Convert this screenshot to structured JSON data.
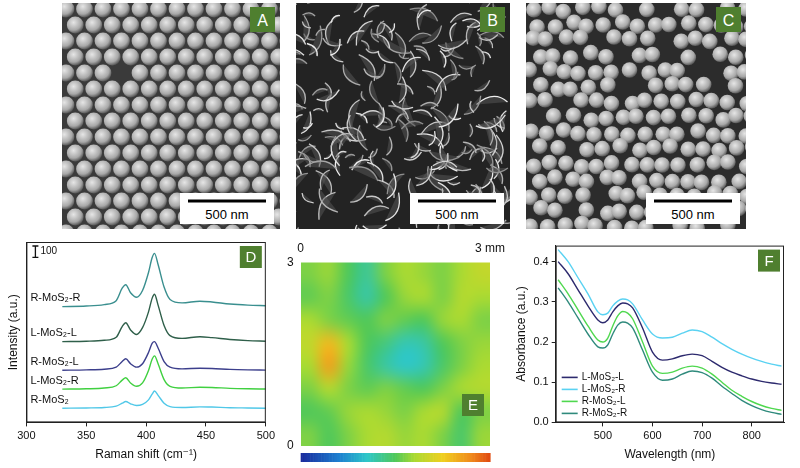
{
  "panels": [
    {
      "letter": "A",
      "scale_bar": "500 nm"
    },
    {
      "letter": "B",
      "scale_bar": "500 nm"
    },
    {
      "letter": "C",
      "scale_bar": "500 nm"
    }
  ],
  "chart_data": [
    {
      "letter": "D",
      "type": "line",
      "xlabel": "Raman shift (cm⁻¹)",
      "ylabel": "Intensity (a.u.)",
      "x": [
        330,
        350,
        365,
        375,
        380,
        383,
        387,
        392,
        397,
        402,
        405,
        407,
        410,
        415,
        420,
        430,
        445,
        455,
        470,
        485,
        500
      ],
      "series": [
        {
          "name": "R-MoS₂-R",
          "color": "#3a8f8f",
          "values": [
            1027,
            1032,
            1045,
            1080,
            1190,
            1221,
            1150,
            1110,
            1170,
            1330,
            1460,
            1499,
            1400,
            1200,
            1090,
            1060,
            1075,
            1068,
            1050,
            1040,
            1035
          ]
        },
        {
          "name": "L-MoS₂-L",
          "color": "#2f5f4a",
          "values": [
            716,
            720,
            728,
            755,
            850,
            884,
            820,
            780,
            840,
            980,
            1100,
            1137,
            1040,
            860,
            770,
            745,
            760,
            752,
            735,
            725,
            720
          ]
        },
        {
          "name": "R-MoS₂-L",
          "color": "#3c3f8c",
          "values": [
            463,
            466,
            472,
            490,
            540,
            564,
            520,
            490,
            520,
            620,
            700,
            716,
            660,
            540,
            490,
            475,
            480,
            478,
            470,
            466,
            464
          ]
        },
        {
          "name": "L-MoS₂-R",
          "color": "#40d040",
          "values": [
            295,
            298,
            305,
            325,
            375,
            396,
            350,
            320,
            350,
            460,
            560,
            590,
            520,
            380,
            320,
            305,
            312,
            310,
            302,
            298,
            296
          ]
        },
        {
          "name": "R-MoS₂",
          "color": "#50c8e8",
          "values": [
            126,
            128,
            132,
            145,
            170,
            185,
            165,
            150,
            160,
            200,
            250,
            278,
            240,
            170,
            140,
            132,
            138,
            136,
            130,
            128,
            126
          ]
        }
      ],
      "xlim": [
        300,
        500
      ],
      "xticks": [
        300,
        350,
        400,
        450,
        500
      ],
      "ylim": [
        0,
        1600
      ],
      "scale_bar": 100,
      "tick_labels": "x",
      "grid": false
    },
    {
      "letter": "E",
      "type": "heatmap",
      "cells": [
        [
          0.55,
          0.58,
          0.5,
          0.42,
          0.55,
          0.6,
          0.58,
          0.55,
          0.6,
          0.65
        ],
        [
          0.52,
          0.55,
          0.48,
          0.4,
          0.5,
          0.58,
          0.6,
          0.55,
          0.62,
          0.6
        ],
        [
          0.6,
          0.55,
          0.52,
          0.5,
          0.55,
          0.52,
          0.5,
          0.58,
          0.6,
          0.55
        ],
        [
          0.65,
          0.8,
          0.6,
          0.5,
          0.45,
          0.38,
          0.4,
          0.5,
          0.55,
          0.58
        ],
        [
          0.6,
          0.85,
          0.58,
          0.48,
          0.4,
          0.35,
          0.38,
          0.48,
          0.55,
          0.6
        ],
        [
          0.55,
          0.62,
          0.55,
          0.52,
          0.55,
          0.52,
          0.5,
          0.55,
          0.6,
          0.62
        ],
        [
          0.5,
          0.52,
          0.58,
          0.6,
          0.58,
          0.55,
          0.6,
          0.62,
          0.5,
          0.55
        ],
        [
          0.55,
          0.5,
          0.55,
          0.6,
          0.62,
          0.58,
          0.6,
          0.55,
          0.48,
          0.58
        ]
      ],
      "xlim": [
        0,
        3
      ],
      "xticks": [
        0,
        {
          "value": 3,
          "label": "3 mm"
        }
      ],
      "ylim": [
        0,
        3
      ],
      "yticks": [
        0,
        3
      ],
      "colorbar_range": [
        0,
        1
      ]
    },
    {
      "letter": "F",
      "type": "line",
      "xlabel": "Wavelength (nm)",
      "ylabel": "Absorbance (a.u.)",
      "x": [
        410,
        430,
        450,
        470,
        490,
        500,
        510,
        520,
        530,
        540,
        550,
        560,
        580,
        600,
        620,
        640,
        660,
        680,
        700,
        720,
        740,
        760,
        780,
        800,
        820,
        840,
        860
      ],
      "series": [
        {
          "name": "L-MoS₂-L",
          "color": "#2d2a6e",
          "values": [
            0.4,
            0.37,
            0.33,
            0.29,
            0.255,
            0.248,
            0.255,
            0.275,
            0.29,
            0.297,
            0.295,
            0.285,
            0.235,
            0.175,
            0.155,
            0.158,
            0.166,
            0.17,
            0.166,
            0.152,
            0.137,
            0.125,
            0.116,
            0.108,
            0.102,
            0.098,
            0.095
          ]
        },
        {
          "name": "L-MoS₂-R",
          "color": "#5ad2f2",
          "values": [
            0.43,
            0.4,
            0.36,
            0.32,
            0.275,
            0.268,
            0.272,
            0.29,
            0.302,
            0.307,
            0.305,
            0.295,
            0.255,
            0.22,
            0.21,
            0.212,
            0.222,
            0.23,
            0.226,
            0.212,
            0.196,
            0.182,
            0.17,
            0.16,
            0.152,
            0.145,
            0.14
          ]
        },
        {
          "name": "R-MoS₂-L",
          "color": "#4fd84f",
          "values": [
            0.355,
            0.32,
            0.28,
            0.24,
            0.205,
            0.2,
            0.21,
            0.24,
            0.265,
            0.276,
            0.272,
            0.258,
            0.2,
            0.14,
            0.122,
            0.125,
            0.135,
            0.14,
            0.135,
            0.12,
            0.1,
            0.08,
            0.065,
            0.052,
            0.042,
            0.035,
            0.03
          ]
        },
        {
          "name": "R-MoS₂-R",
          "color": "#2f8a7c",
          "values": [
            0.335,
            0.3,
            0.26,
            0.22,
            0.188,
            0.185,
            0.193,
            0.22,
            0.242,
            0.25,
            0.247,
            0.235,
            0.18,
            0.125,
            0.105,
            0.108,
            0.12,
            0.128,
            0.124,
            0.11,
            0.09,
            0.072,
            0.055,
            0.042,
            0.032,
            0.025,
            0.02
          ]
        }
      ],
      "xlim": [
        405,
        865
      ],
      "xticks": [
        500,
        600,
        700,
        800
      ],
      "ylim": [
        0,
        0.44
      ],
      "yticks": [
        {
          "value": 0,
          "label": "0.0"
        },
        0.1,
        0.2,
        0.3,
        0.4
      ],
      "legend": "lower left",
      "grid": false
    }
  ]
}
